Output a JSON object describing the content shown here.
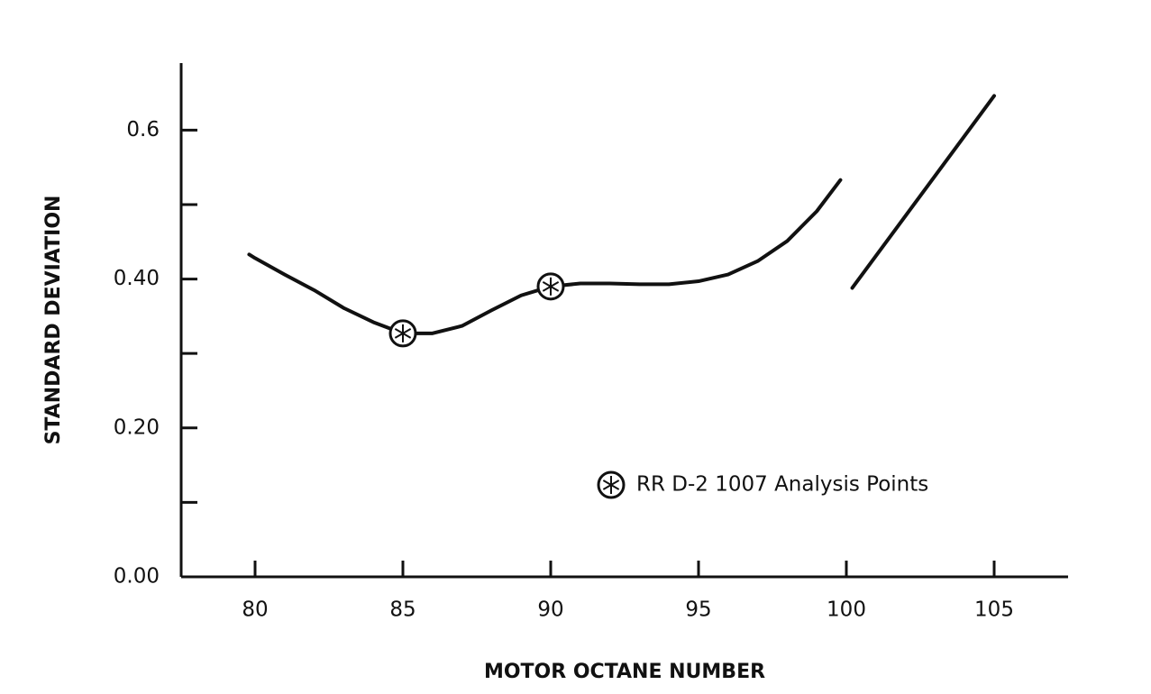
{
  "chart_data": {
    "type": "line",
    "x_label": "MOTOR OCTANE NUMBER",
    "y_label": "STANDARD DEVIATION",
    "x": [
      79.8,
      80,
      81,
      82,
      83,
      84,
      85,
      86,
      87,
      88,
      89,
      90,
      91,
      92,
      93,
      94,
      95,
      96,
      97,
      98,
      99,
      99.8,
      null,
      100.2,
      105
    ],
    "series": [
      {
        "color": "#111111",
        "values": [
          0.433,
          0.428,
          0.406,
          0.385,
          0.361,
          0.342,
          0.327,
          0.327,
          0.337,
          0.358,
          0.378,
          0.39,
          0.394,
          0.394,
          0.393,
          0.393,
          0.397,
          0.406,
          0.424,
          0.451,
          0.491,
          0.533,
          null,
          0.388,
          0.646
        ]
      },
      {
        "name": "RR D-2 1007 Analysis Points",
        "type": "scatter",
        "color": "#111111",
        "x": [
          85,
          90
        ],
        "values": [
          0.327,
          0.39
        ]
      }
    ],
    "xlim": [
      77.5,
      107.5
    ],
    "xticks": [
      80,
      85,
      90,
      95,
      100,
      105
    ],
    "ylim": [
      0,
      0.69
    ],
    "yticks": [
      {
        "value": 0,
        "label": "0.00"
      },
      {
        "value": 0.2,
        "label": "0.20"
      },
      {
        "value": 0.4,
        "label": "0.40"
      },
      0.6
    ],
    "yticks_minor": [
      0.1,
      0.3,
      0.5
    ],
    "grid": false
  }
}
